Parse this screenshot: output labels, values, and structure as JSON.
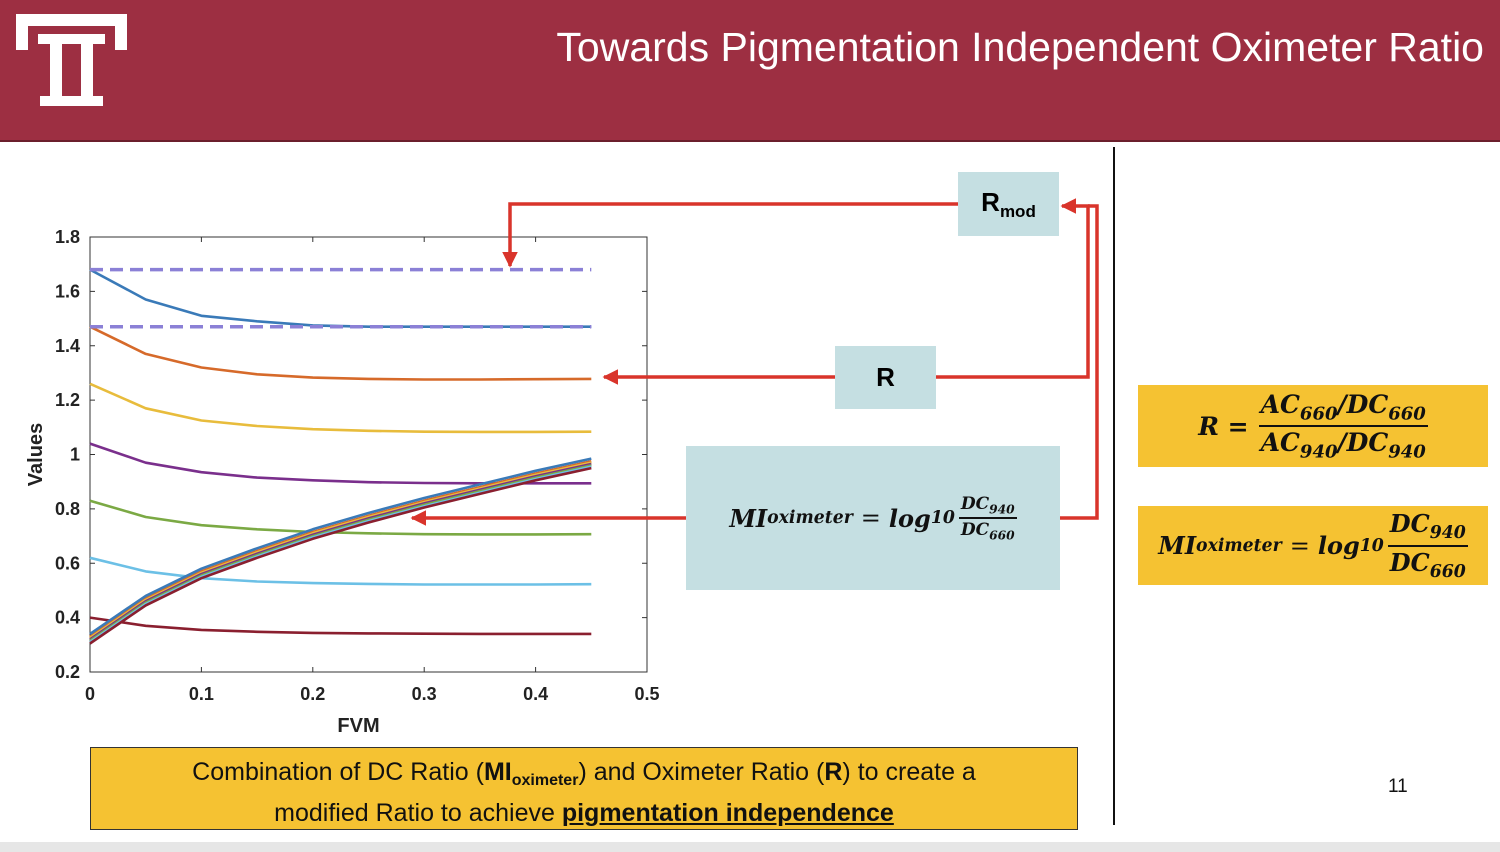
{
  "slide": {
    "title": "Towards Pigmentation Independent Oximeter Ratio",
    "page_number": "11",
    "header_color": "#9d2f42",
    "logo": "university-T-logo"
  },
  "labels": {
    "rmod_main": "R",
    "rmod_sub": "mod",
    "r_box": "R",
    "mi_main": "MI",
    "mi_sub": "oximeter",
    "eq_sign": "=",
    "log_main": "log",
    "log_sub": "10",
    "dc940_main": "DC",
    "dc940_sub": "940",
    "dc660_main": "DC",
    "dc660_sub": "660"
  },
  "formula_r": {
    "lhs": "R =",
    "num_a": "AC",
    "num_a_sub": "660",
    "num_slash": "/",
    "num_b": "DC",
    "num_b_sub": "660",
    "den_a": "AC",
    "den_a_sub": "940",
    "den_slash": "/",
    "den_b": "DC",
    "den_b_sub": "940"
  },
  "caption": {
    "line1_a": "Combination of DC Ratio (",
    "line1_b": "MI",
    "line1_c": "oximeter",
    "line1_d": ") and Oximeter Ratio (",
    "line1_e": "R",
    "line1_f": ") to create a",
    "line2_a": "modified Ratio to achieve ",
    "line2_b": "pigmentation independence"
  },
  "colors": {
    "arrow": "#d9342b",
    "box_blue": "#c5dfe2",
    "box_yellow": "#f5c232",
    "reference_line": "#8b80d6"
  },
  "chart_data": {
    "type": "line",
    "xlabel": "FVM",
    "ylabel": "Values",
    "xlim": [
      0,
      0.5
    ],
    "ylim": [
      0.2,
      1.8
    ],
    "xticks": [
      "0",
      "0.1",
      "0.2",
      "0.3",
      "0.4",
      "0.5"
    ],
    "yticks": [
      "0.2",
      "0.4",
      "0.6",
      "0.8",
      "1",
      "1.2",
      "1.4",
      "1.6",
      "1.8"
    ],
    "x": [
      0,
      0.05,
      0.1,
      0.15,
      0.2,
      0.25,
      0.3,
      0.35,
      0.4,
      0.45
    ],
    "series": [
      {
        "color": "#3a7ab8",
        "values": [
          1.68,
          1.57,
          1.51,
          1.49,
          1.475,
          1.47,
          1.47,
          1.47,
          1.47,
          1.47
        ]
      },
      {
        "color": "#d66a2a",
        "values": [
          1.47,
          1.37,
          1.32,
          1.295,
          1.283,
          1.278,
          1.276,
          1.276,
          1.277,
          1.278
        ]
      },
      {
        "color": "#e8bc3c",
        "values": [
          1.26,
          1.17,
          1.125,
          1.105,
          1.093,
          1.087,
          1.084,
          1.083,
          1.083,
          1.084
        ]
      },
      {
        "color": "#7a2f8c",
        "values": [
          1.04,
          0.97,
          0.935,
          0.915,
          0.905,
          0.898,
          0.895,
          0.894,
          0.894,
          0.894
        ]
      },
      {
        "color": "#7ba944",
        "values": [
          0.83,
          0.77,
          0.74,
          0.725,
          0.715,
          0.71,
          0.707,
          0.706,
          0.706,
          0.707
        ]
      },
      {
        "color": "#6cc0e6",
        "values": [
          0.62,
          0.57,
          0.545,
          0.533,
          0.527,
          0.524,
          0.522,
          0.522,
          0.522,
          0.523
        ]
      },
      {
        "color": "#8a1f2f",
        "values": [
          0.4,
          0.37,
          0.355,
          0.348,
          0.344,
          0.342,
          0.341,
          0.34,
          0.34,
          0.34
        ]
      },
      {
        "color": "#d66a2a",
        "values": [
          0.33,
          0.47,
          0.57,
          0.645,
          0.715,
          0.775,
          0.83,
          0.88,
          0.93,
          0.975
        ]
      },
      {
        "color": "#e8bc3c",
        "values": [
          0.325,
          0.465,
          0.565,
          0.64,
          0.71,
          0.77,
          0.825,
          0.875,
          0.925,
          0.97
        ]
      },
      {
        "color": "#7a2f8c",
        "values": [
          0.32,
          0.46,
          0.56,
          0.635,
          0.705,
          0.765,
          0.82,
          0.87,
          0.92,
          0.965
        ]
      },
      {
        "color": "#7ba944",
        "values": [
          0.315,
          0.455,
          0.555,
          0.63,
          0.7,
          0.76,
          0.815,
          0.865,
          0.915,
          0.96
        ]
      },
      {
        "color": "#6cc0e6",
        "values": [
          0.31,
          0.45,
          0.55,
          0.625,
          0.695,
          0.755,
          0.81,
          0.86,
          0.91,
          0.955
        ]
      },
      {
        "color": "#3a7ab8",
        "values": [
          0.34,
          0.48,
          0.58,
          0.655,
          0.725,
          0.785,
          0.84,
          0.89,
          0.94,
          0.985
        ]
      },
      {
        "color": "#8a1f2f",
        "values": [
          0.305,
          0.445,
          0.545,
          0.62,
          0.69,
          0.75,
          0.805,
          0.855,
          0.905,
          0.95
        ]
      }
    ],
    "reference_lines": [
      1.68,
      1.47
    ],
    "grid": false
  }
}
